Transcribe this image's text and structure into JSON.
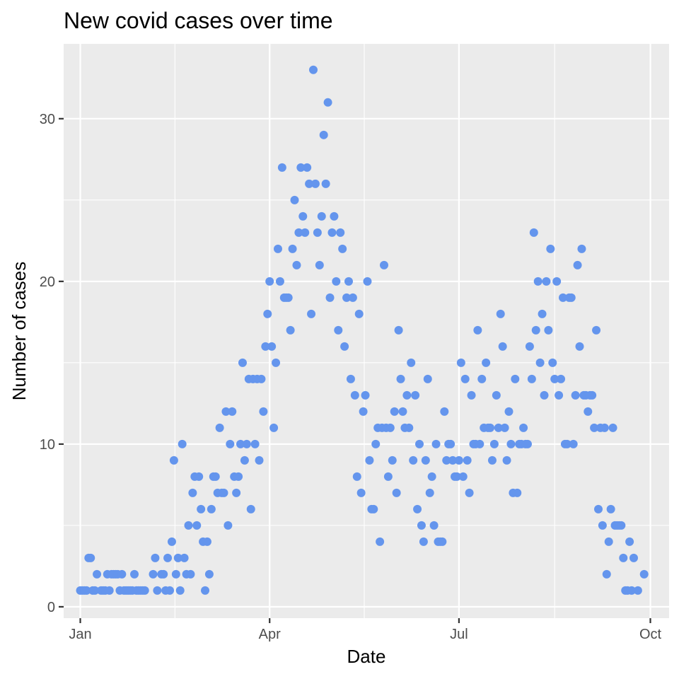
{
  "chart_data": {
    "type": "scatter",
    "title": "New covid cases over time",
    "xlabel": "Date",
    "ylabel": "Number of cases",
    "point_color": "#6495ED",
    "panel_background": "#EBEBEB",
    "grid": true,
    "legend": "none",
    "x_ticks": [
      {
        "label": "Jan",
        "date": "2020-01-01"
      },
      {
        "label": "Apr",
        "date": "2020-04-01"
      },
      {
        "label": "Jul",
        "date": "2020-07-01"
      },
      {
        "label": "Oct",
        "date": "2020-10-01"
      }
    ],
    "y_ticks": [
      0,
      10,
      20,
      30
    ],
    "xlim": [
      "2019-12-24",
      "2020-10-10"
    ],
    "ylim": [
      -0.7,
      34.6
    ],
    "series": [
      {
        "points": [
          [
            "2020-01-01",
            1
          ],
          [
            "2020-01-02",
            1
          ],
          [
            "2020-01-03",
            1
          ],
          [
            "2020-01-04",
            1
          ],
          [
            "2020-01-05",
            3
          ],
          [
            "2020-01-06",
            3
          ],
          [
            "2020-01-07",
            1
          ],
          [
            "2020-01-08",
            1
          ],
          [
            "2020-01-09",
            2
          ],
          [
            "2020-01-11",
            1
          ],
          [
            "2020-01-12",
            1
          ],
          [
            "2020-01-13",
            1
          ],
          [
            "2020-01-14",
            2
          ],
          [
            "2020-01-15",
            1
          ],
          [
            "2020-01-16",
            2
          ],
          [
            "2020-01-17",
            2
          ],
          [
            "2020-01-18",
            2
          ],
          [
            "2020-01-19",
            2
          ],
          [
            "2020-01-20",
            1
          ],
          [
            "2020-01-21",
            2
          ],
          [
            "2020-01-22",
            1
          ],
          [
            "2020-01-23",
            1
          ],
          [
            "2020-01-24",
            1
          ],
          [
            "2020-01-25",
            1
          ],
          [
            "2020-01-26",
            1
          ],
          [
            "2020-01-27",
            2
          ],
          [
            "2020-01-28",
            1
          ],
          [
            "2020-01-29",
            1
          ],
          [
            "2020-01-30",
            1
          ],
          [
            "2020-01-31",
            1
          ],
          [
            "2020-02-01",
            1
          ],
          [
            "2020-02-05",
            2
          ],
          [
            "2020-02-06",
            3
          ],
          [
            "2020-02-07",
            1
          ],
          [
            "2020-02-09",
            2
          ],
          [
            "2020-02-10",
            2
          ],
          [
            "2020-02-11",
            1
          ],
          [
            "2020-02-12",
            3
          ],
          [
            "2020-02-13",
            1
          ],
          [
            "2020-02-14",
            4
          ],
          [
            "2020-02-15",
            9
          ],
          [
            "2020-02-16",
            2
          ],
          [
            "2020-02-17",
            3
          ],
          [
            "2020-02-18",
            1
          ],
          [
            "2020-02-19",
            10
          ],
          [
            "2020-02-20",
            3
          ],
          [
            "2020-02-21",
            2
          ],
          [
            "2020-02-22",
            5
          ],
          [
            "2020-02-23",
            2
          ],
          [
            "2020-02-24",
            7
          ],
          [
            "2020-02-25",
            8
          ],
          [
            "2020-02-26",
            5
          ],
          [
            "2020-02-27",
            8
          ],
          [
            "2020-02-28",
            6
          ],
          [
            "2020-02-29",
            4
          ],
          [
            "2020-03-01",
            1
          ],
          [
            "2020-03-02",
            4
          ],
          [
            "2020-03-03",
            2
          ],
          [
            "2020-03-04",
            6
          ],
          [
            "2020-03-05",
            8
          ],
          [
            "2020-03-06",
            8
          ],
          [
            "2020-03-07",
            7
          ],
          [
            "2020-03-08",
            11
          ],
          [
            "2020-03-09",
            7
          ],
          [
            "2020-03-10",
            7
          ],
          [
            "2020-03-11",
            12
          ],
          [
            "2020-03-12",
            5
          ],
          [
            "2020-03-13",
            10
          ],
          [
            "2020-03-14",
            12
          ],
          [
            "2020-03-15",
            8
          ],
          [
            "2020-03-16",
            7
          ],
          [
            "2020-03-17",
            8
          ],
          [
            "2020-03-18",
            10
          ],
          [
            "2020-03-19",
            15
          ],
          [
            "2020-03-20",
            9
          ],
          [
            "2020-03-21",
            10
          ],
          [
            "2020-03-22",
            14
          ],
          [
            "2020-03-23",
            6
          ],
          [
            "2020-03-24",
            14
          ],
          [
            "2020-03-25",
            10
          ],
          [
            "2020-03-26",
            14
          ],
          [
            "2020-03-27",
            9
          ],
          [
            "2020-03-28",
            14
          ],
          [
            "2020-03-29",
            12
          ],
          [
            "2020-03-30",
            16
          ],
          [
            "2020-03-31",
            18
          ],
          [
            "2020-04-01",
            20
          ],
          [
            "2020-04-02",
            16
          ],
          [
            "2020-04-03",
            11
          ],
          [
            "2020-04-04",
            15
          ],
          [
            "2020-04-05",
            22
          ],
          [
            "2020-04-06",
            20
          ],
          [
            "2020-04-07",
            27
          ],
          [
            "2020-04-08",
            19
          ],
          [
            "2020-04-09",
            19
          ],
          [
            "2020-04-10",
            19
          ],
          [
            "2020-04-11",
            17
          ],
          [
            "2020-04-12",
            22
          ],
          [
            "2020-04-13",
            25
          ],
          [
            "2020-04-14",
            21
          ],
          [
            "2020-04-15",
            23
          ],
          [
            "2020-04-16",
            27
          ],
          [
            "2020-04-17",
            24
          ],
          [
            "2020-04-18",
            23
          ],
          [
            "2020-04-19",
            27
          ],
          [
            "2020-04-20",
            26
          ],
          [
            "2020-04-21",
            18
          ],
          [
            "2020-04-22",
            33
          ],
          [
            "2020-04-23",
            26
          ],
          [
            "2020-04-24",
            23
          ],
          [
            "2020-04-25",
            21
          ],
          [
            "2020-04-26",
            24
          ],
          [
            "2020-04-27",
            29
          ],
          [
            "2020-04-28",
            26
          ],
          [
            "2020-04-29",
            31
          ],
          [
            "2020-04-30",
            19
          ],
          [
            "2020-05-01",
            23
          ],
          [
            "2020-05-02",
            24
          ],
          [
            "2020-05-03",
            20
          ],
          [
            "2020-05-04",
            17
          ],
          [
            "2020-05-05",
            23
          ],
          [
            "2020-05-06",
            22
          ],
          [
            "2020-05-07",
            16
          ],
          [
            "2020-05-08",
            19
          ],
          [
            "2020-05-09",
            20
          ],
          [
            "2020-05-10",
            14
          ],
          [
            "2020-05-11",
            19
          ],
          [
            "2020-05-12",
            13
          ],
          [
            "2020-05-13",
            8
          ],
          [
            "2020-05-14",
            18
          ],
          [
            "2020-05-15",
            7
          ],
          [
            "2020-05-16",
            12
          ],
          [
            "2020-05-17",
            13
          ],
          [
            "2020-05-18",
            20
          ],
          [
            "2020-05-19",
            9
          ],
          [
            "2020-05-20",
            6
          ],
          [
            "2020-05-21",
            6
          ],
          [
            "2020-05-22",
            10
          ],
          [
            "2020-05-23",
            11
          ],
          [
            "2020-05-24",
            4
          ],
          [
            "2020-05-25",
            11
          ],
          [
            "2020-05-26",
            21
          ],
          [
            "2020-05-27",
            11
          ],
          [
            "2020-05-28",
            8
          ],
          [
            "2020-05-29",
            11
          ],
          [
            "2020-05-30",
            9
          ],
          [
            "2020-05-31",
            12
          ],
          [
            "2020-06-01",
            7
          ],
          [
            "2020-06-02",
            17
          ],
          [
            "2020-06-03",
            14
          ],
          [
            "2020-06-04",
            12
          ],
          [
            "2020-06-05",
            11
          ],
          [
            "2020-06-06",
            13
          ],
          [
            "2020-06-07",
            11
          ],
          [
            "2020-06-08",
            15
          ],
          [
            "2020-06-09",
            9
          ],
          [
            "2020-06-10",
            13
          ],
          [
            "2020-06-11",
            6
          ],
          [
            "2020-06-12",
            10
          ],
          [
            "2020-06-13",
            5
          ],
          [
            "2020-06-14",
            4
          ],
          [
            "2020-06-15",
            9
          ],
          [
            "2020-06-16",
            14
          ],
          [
            "2020-06-17",
            7
          ],
          [
            "2020-06-18",
            8
          ],
          [
            "2020-06-19",
            5
          ],
          [
            "2020-06-20",
            10
          ],
          [
            "2020-06-21",
            4
          ],
          [
            "2020-06-22",
            4
          ],
          [
            "2020-06-23",
            4
          ],
          [
            "2020-06-24",
            12
          ],
          [
            "2020-06-25",
            9
          ],
          [
            "2020-06-26",
            10
          ],
          [
            "2020-06-27",
            10
          ],
          [
            "2020-06-28",
            9
          ],
          [
            "2020-06-29",
            8
          ],
          [
            "2020-06-30",
            8
          ],
          [
            "2020-07-01",
            9
          ],
          [
            "2020-07-02",
            15
          ],
          [
            "2020-07-03",
            8
          ],
          [
            "2020-07-04",
            14
          ],
          [
            "2020-07-05",
            9
          ],
          [
            "2020-07-06",
            7
          ],
          [
            "2020-07-07",
            13
          ],
          [
            "2020-07-08",
            10
          ],
          [
            "2020-07-09",
            10
          ],
          [
            "2020-07-10",
            17
          ],
          [
            "2020-07-11",
            10
          ],
          [
            "2020-07-12",
            14
          ],
          [
            "2020-07-13",
            11
          ],
          [
            "2020-07-14",
            15
          ],
          [
            "2020-07-15",
            11
          ],
          [
            "2020-07-16",
            11
          ],
          [
            "2020-07-17",
            9
          ],
          [
            "2020-07-18",
            10
          ],
          [
            "2020-07-19",
            13
          ],
          [
            "2020-07-20",
            11
          ],
          [
            "2020-07-21",
            18
          ],
          [
            "2020-07-22",
            16
          ],
          [
            "2020-07-23",
            11
          ],
          [
            "2020-07-24",
            9
          ],
          [
            "2020-07-25",
            12
          ],
          [
            "2020-07-26",
            10
          ],
          [
            "2020-07-27",
            7
          ],
          [
            "2020-07-28",
            14
          ],
          [
            "2020-07-29",
            7
          ],
          [
            "2020-07-30",
            10
          ],
          [
            "2020-07-31",
            10
          ],
          [
            "2020-08-01",
            11
          ],
          [
            "2020-08-02",
            10
          ],
          [
            "2020-08-03",
            10
          ],
          [
            "2020-08-04",
            16
          ],
          [
            "2020-08-05",
            14
          ],
          [
            "2020-08-06",
            23
          ],
          [
            "2020-08-07",
            17
          ],
          [
            "2020-08-08",
            20
          ],
          [
            "2020-08-09",
            15
          ],
          [
            "2020-08-10",
            18
          ],
          [
            "2020-08-11",
            13
          ],
          [
            "2020-08-12",
            20
          ],
          [
            "2020-08-13",
            17
          ],
          [
            "2020-08-14",
            22
          ],
          [
            "2020-08-15",
            15
          ],
          [
            "2020-08-16",
            14
          ],
          [
            "2020-08-17",
            20
          ],
          [
            "2020-08-18",
            13
          ],
          [
            "2020-08-19",
            14
          ],
          [
            "2020-08-20",
            19
          ],
          [
            "2020-08-21",
            10
          ],
          [
            "2020-08-22",
            10
          ],
          [
            "2020-08-23",
            19
          ],
          [
            "2020-08-24",
            19
          ],
          [
            "2020-08-25",
            10
          ],
          [
            "2020-08-26",
            13
          ],
          [
            "2020-08-27",
            21
          ],
          [
            "2020-08-28",
            16
          ],
          [
            "2020-08-29",
            22
          ],
          [
            "2020-08-30",
            13
          ],
          [
            "2020-08-31",
            13
          ],
          [
            "2020-09-01",
            12
          ],
          [
            "2020-09-02",
            13
          ],
          [
            "2020-09-03",
            13
          ],
          [
            "2020-09-04",
            11
          ],
          [
            "2020-09-05",
            17
          ],
          [
            "2020-09-06",
            6
          ],
          [
            "2020-09-07",
            11
          ],
          [
            "2020-09-08",
            5
          ],
          [
            "2020-09-09",
            11
          ],
          [
            "2020-09-10",
            2
          ],
          [
            "2020-09-11",
            4
          ],
          [
            "2020-09-12",
            6
          ],
          [
            "2020-09-13",
            11
          ],
          [
            "2020-09-14",
            5
          ],
          [
            "2020-09-15",
            5
          ],
          [
            "2020-09-16",
            5
          ],
          [
            "2020-09-17",
            5
          ],
          [
            "2020-09-18",
            3
          ],
          [
            "2020-09-19",
            1
          ],
          [
            "2020-09-20",
            1
          ],
          [
            "2020-09-21",
            4
          ],
          [
            "2020-09-22",
            1
          ],
          [
            "2020-09-23",
            3
          ],
          [
            "2020-09-25",
            1
          ],
          [
            "2020-09-28",
            2
          ]
        ]
      }
    ]
  }
}
